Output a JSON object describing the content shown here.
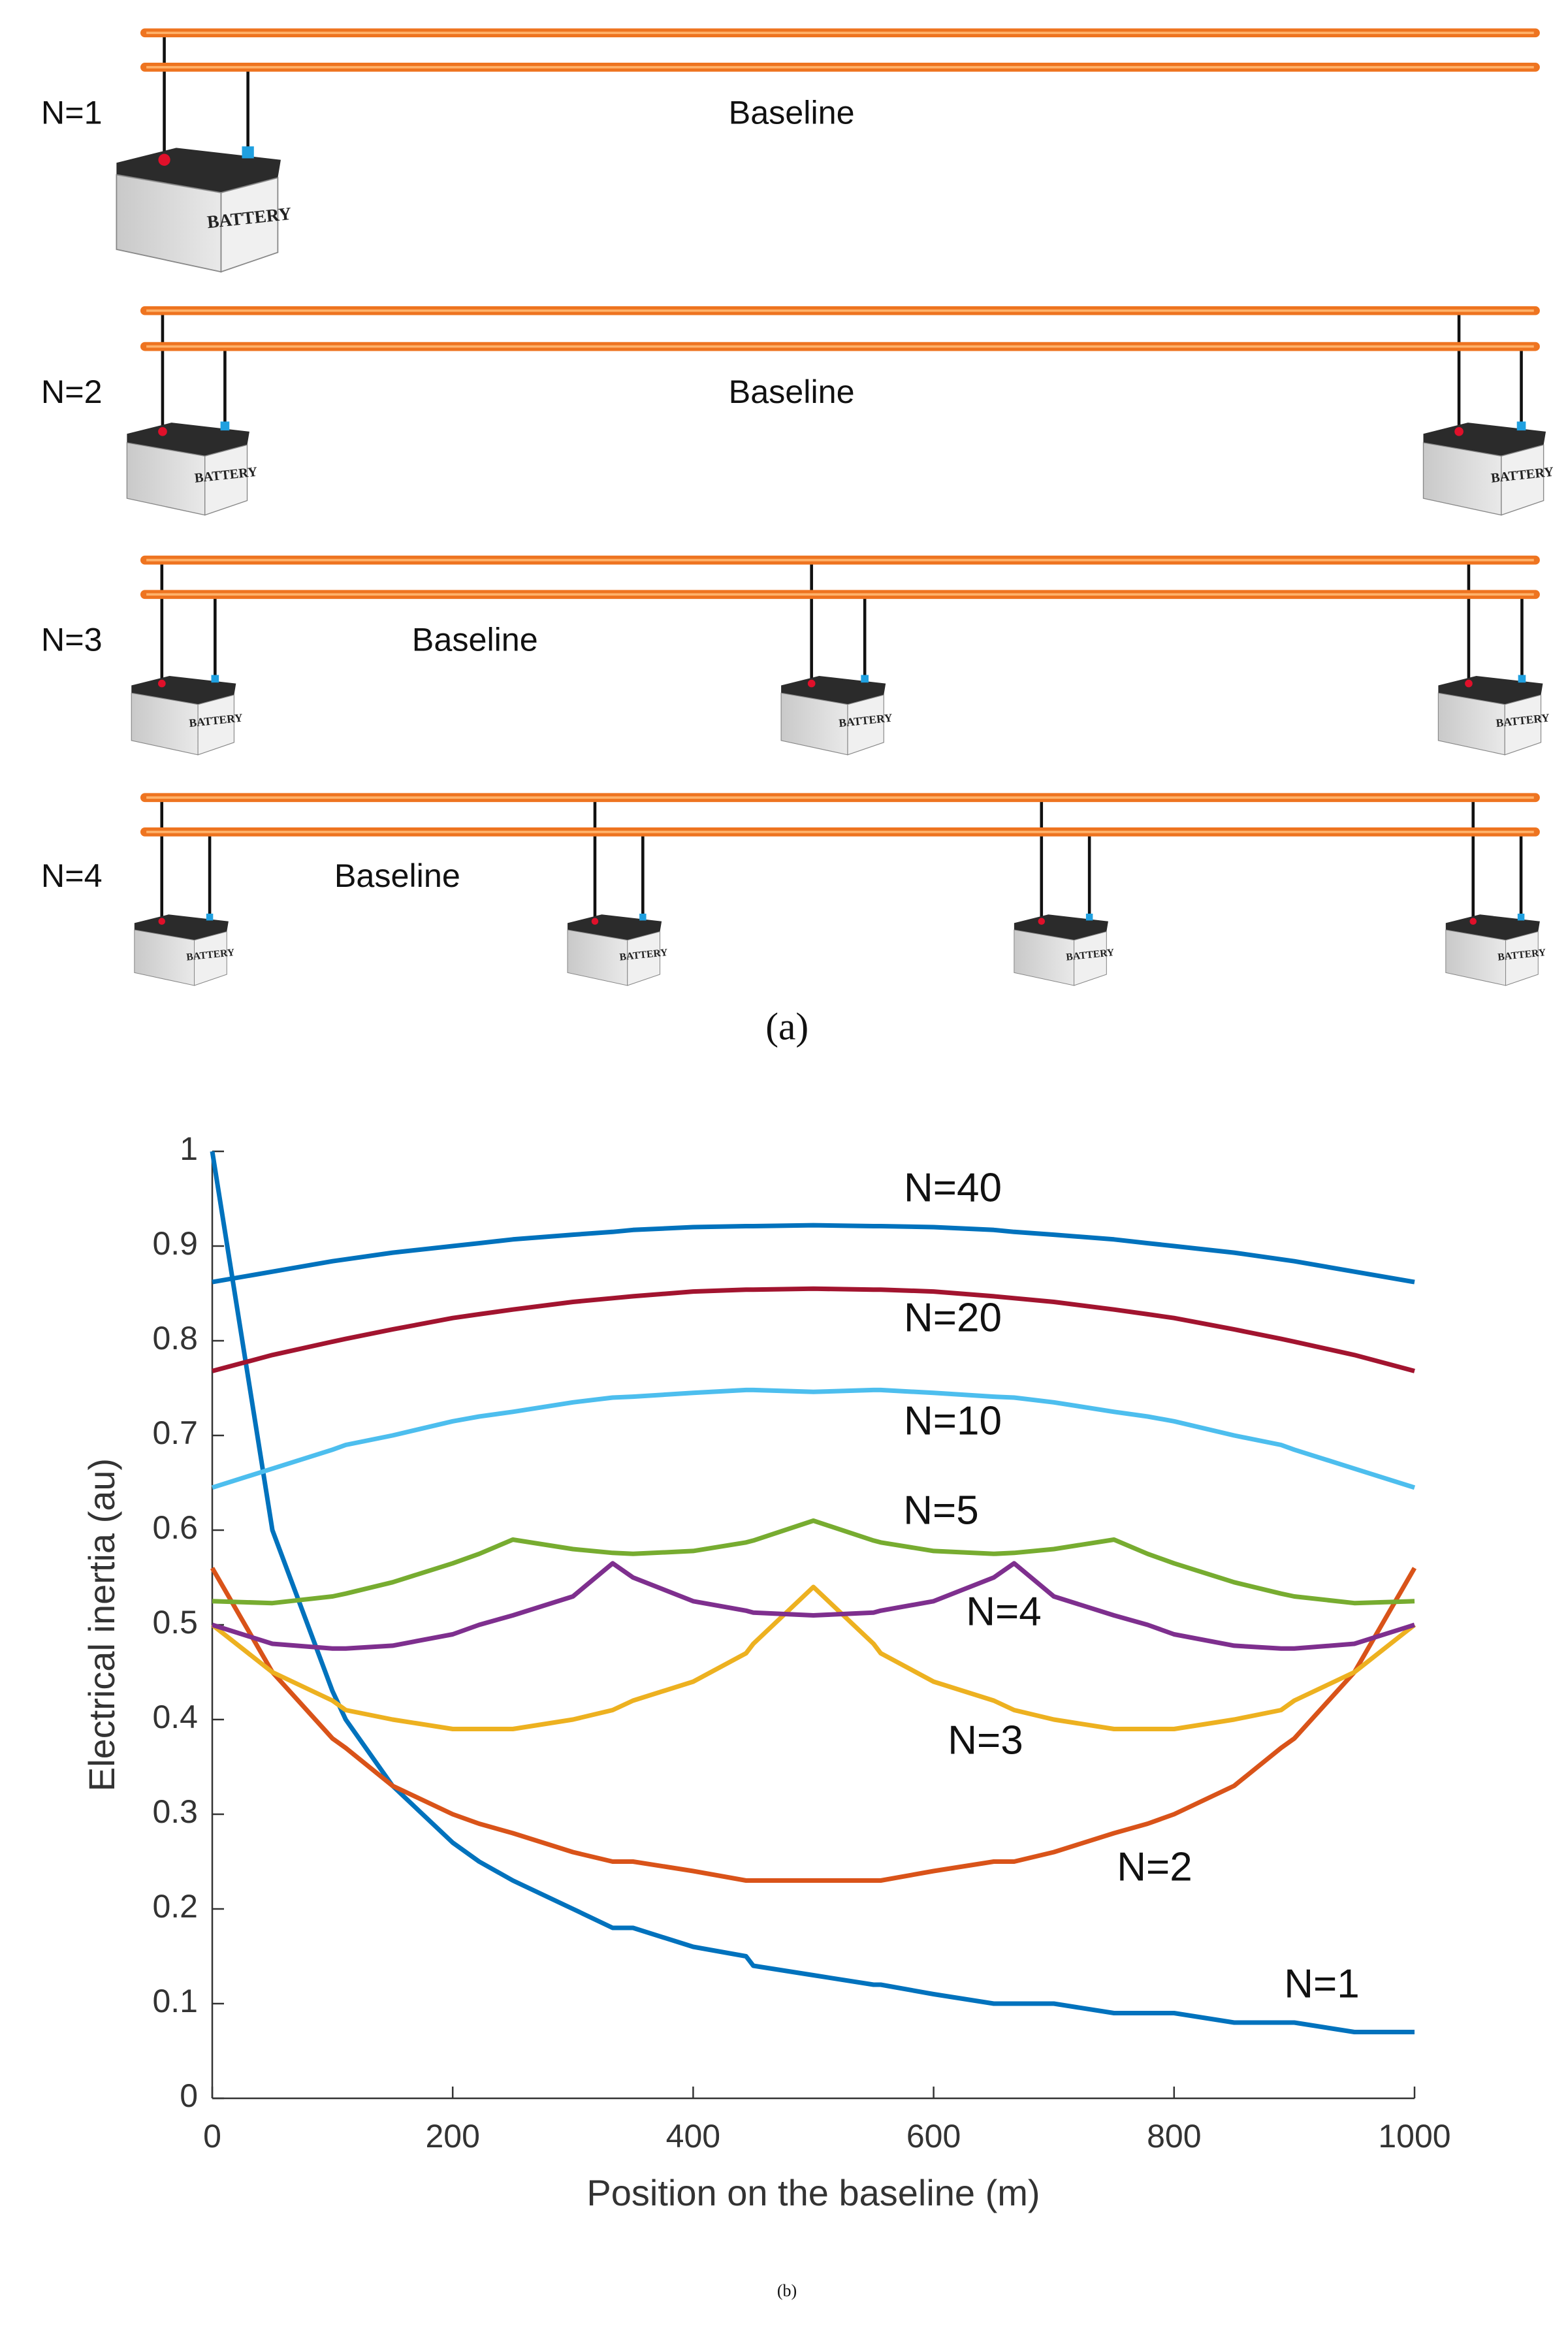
{
  "diagram": {
    "rows": [
      {
        "label": "N=1",
        "baseline": "Baseline"
      },
      {
        "label": "N=2",
        "baseline": "Baseline"
      },
      {
        "label": "N=3",
        "baseline": "Baseline"
      },
      {
        "label": "N=4",
        "baseline": "Baseline"
      }
    ],
    "battery_text": "BATTERY",
    "caption": "(a)"
  },
  "chart_data": {
    "type": "line",
    "caption": "(b)",
    "x_label": "Position on the baseline (m)",
    "y_label": "Electrical inertia (au)",
    "x": [
      0,
      50,
      100,
      111,
      150,
      200,
      222,
      250,
      300,
      333,
      350,
      400,
      444,
      450,
      500,
      550,
      556,
      600,
      650,
      667,
      700,
      750,
      778,
      800,
      850,
      889,
      900,
      950,
      1000
    ],
    "series": [
      {
        "name": "N=1",
        "color": "#0072bd",
        "values": [
          1,
          0.6,
          0.43,
          0.4,
          0.33,
          0.27,
          0.25,
          0.23,
          0.2,
          0.18,
          0.18,
          0.16,
          0.15,
          0.14,
          0.13,
          0.12,
          0.12,
          0.11,
          0.1,
          0.1,
          0.1,
          0.09,
          0.09,
          0.09,
          0.08,
          0.08,
          0.08,
          0.07,
          0.07
        ]
      },
      {
        "name": "N=2",
        "color": "#d95319",
        "values": [
          0.56,
          0.45,
          0.38,
          0.37,
          0.33,
          0.3,
          0.29,
          0.28,
          0.26,
          0.25,
          0.25,
          0.24,
          0.23,
          0.23,
          0.23,
          0.23,
          0.23,
          0.24,
          0.25,
          0.25,
          0.26,
          0.28,
          0.29,
          0.3,
          0.33,
          0.37,
          0.38,
          0.45,
          0.56
        ]
      },
      {
        "name": "N=3",
        "color": "#edb120",
        "values": [
          0.5,
          0.45,
          0.42,
          0.41,
          0.4,
          0.39,
          0.39,
          0.39,
          0.4,
          0.41,
          0.42,
          0.44,
          0.47,
          0.48,
          0.54,
          0.48,
          0.47,
          0.44,
          0.42,
          0.41,
          0.4,
          0.39,
          0.39,
          0.39,
          0.4,
          0.41,
          0.42,
          0.45,
          0.5
        ]
      },
      {
        "name": "N=4",
        "color": "#7e2f8e",
        "values": [
          0.5,
          0.48,
          0.475,
          0.475,
          0.478,
          0.49,
          0.5,
          0.51,
          0.53,
          0.565,
          0.55,
          0.525,
          0.515,
          0.513,
          0.51,
          0.513,
          0.515,
          0.525,
          0.55,
          0.565,
          0.53,
          0.51,
          0.5,
          0.49,
          0.478,
          0.475,
          0.475,
          0.48,
          0.5
        ]
      },
      {
        "name": "N=5",
        "color": "#77ac30",
        "values": [
          0.525,
          0.523,
          0.53,
          0.533,
          0.545,
          0.565,
          0.575,
          0.59,
          0.58,
          0.576,
          0.575,
          0.578,
          0.587,
          0.589,
          0.61,
          0.589,
          0.587,
          0.578,
          0.575,
          0.576,
          0.58,
          0.59,
          0.575,
          0.565,
          0.545,
          0.533,
          0.53,
          0.523,
          0.525
        ]
      },
      {
        "name": "N=10",
        "color": "#4dbeee",
        "values": [
          0.645,
          0.665,
          0.685,
          0.69,
          0.7,
          0.715,
          0.72,
          0.725,
          0.735,
          0.74,
          0.741,
          0.745,
          0.748,
          0.748,
          0.746,
          0.748,
          0.748,
          0.745,
          0.741,
          0.74,
          0.735,
          0.725,
          0.72,
          0.715,
          0.7,
          0.69,
          0.685,
          0.665,
          0.645
        ]
      },
      {
        "name": "N=20",
        "color": "#a2142f",
        "values": [
          0.768,
          0.785,
          0.799,
          0.802,
          0.812,
          0.824,
          0.828,
          0.833,
          0.841,
          0.845,
          0.847,
          0.852,
          0.854,
          0.854,
          0.855,
          0.854,
          0.854,
          0.852,
          0.847,
          0.845,
          0.841,
          0.833,
          0.828,
          0.824,
          0.812,
          0.802,
          0.799,
          0.785,
          0.768
        ]
      },
      {
        "name": "N=40",
        "color": "#0072bd",
        "values": [
          0.862,
          0.873,
          0.884,
          0.886,
          0.893,
          0.9,
          0.903,
          0.907,
          0.912,
          0.915,
          0.917,
          0.92,
          0.921,
          0.921,
          0.922,
          0.921,
          0.921,
          0.92,
          0.917,
          0.915,
          0.912,
          0.907,
          0.903,
          0.9,
          0.893,
          0.886,
          0.884,
          0.873,
          0.862
        ]
      }
    ],
    "xlim": [
      0,
      1000
    ],
    "xticks": [
      0,
      200,
      400,
      600,
      800,
      1000
    ],
    "ylim": [
      0,
      1
    ],
    "yticks": [
      0,
      0.1,
      0.2,
      0.3,
      0.4,
      0.5,
      0.6,
      0.7,
      0.8,
      0.9,
      1
    ]
  }
}
